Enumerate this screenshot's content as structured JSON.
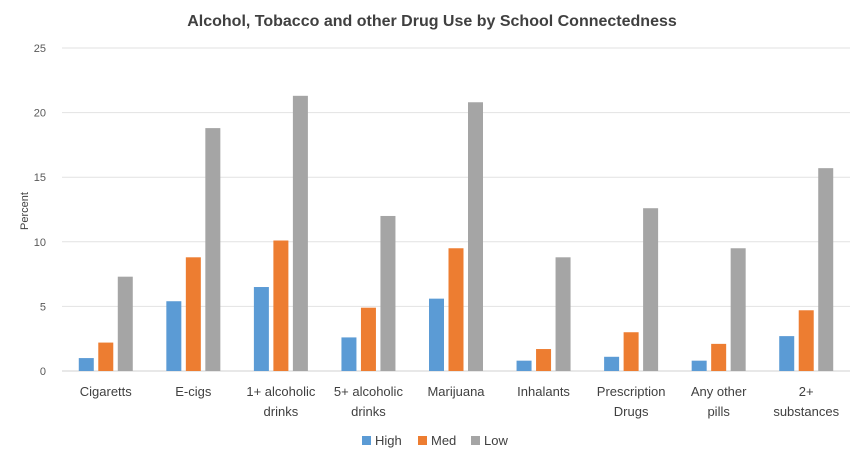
{
  "chart_data": {
    "type": "bar",
    "title": "Alcohol, Tobacco and other Drug Use by School Connectedness",
    "xlabel": "",
    "ylabel": "Percent",
    "ylim": [
      0,
      25
    ],
    "yticks": [
      0,
      5,
      10,
      15,
      20,
      25
    ],
    "grid": true,
    "legend_position": "bottom",
    "categories": [
      [
        "Cigaretts"
      ],
      [
        "E-cigs"
      ],
      [
        "1+ alcoholic",
        "drinks"
      ],
      [
        "5+ alcoholic",
        "drinks"
      ],
      [
        "Marijuana"
      ],
      [
        "Inhalants"
      ],
      [
        "Prescription",
        "Drugs"
      ],
      [
        "Any other",
        "pills"
      ],
      [
        "2+",
        "substances"
      ]
    ],
    "series": [
      {
        "name": "High",
        "color": "#5b9bd5",
        "values": [
          1.0,
          5.4,
          6.5,
          2.6,
          5.6,
          0.8,
          1.1,
          0.8,
          2.7
        ]
      },
      {
        "name": "Med",
        "color": "#ed7d31",
        "values": [
          2.2,
          8.8,
          10.1,
          4.9,
          9.5,
          1.7,
          3.0,
          2.1,
          4.7
        ]
      },
      {
        "name": "Low",
        "color": "#a5a5a5",
        "values": [
          7.3,
          18.8,
          21.3,
          12.0,
          20.8,
          8.8,
          12.6,
          9.5,
          15.7
        ]
      }
    ]
  }
}
